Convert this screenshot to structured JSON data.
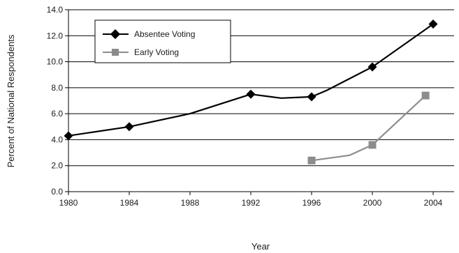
{
  "chart_data": {
    "type": "line",
    "title": "",
    "xlabel": "Year",
    "ylabel": "Percent of National Respondents",
    "xlim": [
      1980,
      2004
    ],
    "ylim": [
      0,
      14
    ],
    "x_ticks": [
      "1980",
      "1984",
      "1988",
      "1992",
      "1996",
      "2000",
      "2004"
    ],
    "y_ticks": [
      "0.0",
      "2.0",
      "4.0",
      "6.0",
      "8.0",
      "10.0",
      "12.0",
      "14.0"
    ],
    "grid": "horizontal",
    "legend_position": "top-left",
    "series": [
      {
        "name": "Absentee Voting",
        "color": "#000000",
        "marker": "diamond",
        "points": [
          {
            "x": 1980,
            "y": 4.3,
            "marker": true
          },
          {
            "x": 1984,
            "y": 5.0,
            "marker": true
          },
          {
            "x": 1988,
            "y": 6.0,
            "marker": false
          },
          {
            "x": 1992,
            "y": 7.5,
            "marker": true
          },
          {
            "x": 1994,
            "y": 7.2,
            "marker": false
          },
          {
            "x": 1996,
            "y": 7.3,
            "marker": true
          },
          {
            "x": 1997,
            "y": 7.8,
            "marker": false
          },
          {
            "x": 2000,
            "y": 9.6,
            "marker": true
          },
          {
            "x": 2004,
            "y": 12.9,
            "marker": true
          }
        ]
      },
      {
        "name": "Early Voting",
        "color": "#8c8c8c",
        "marker": "square",
        "points": [
          {
            "x": 1996,
            "y": 2.4,
            "marker": true
          },
          {
            "x": 1998.5,
            "y": 2.8,
            "marker": false
          },
          {
            "x": 2000,
            "y": 3.6,
            "marker": true
          },
          {
            "x": 2003.5,
            "y": 7.4,
            "marker": true
          }
        ]
      }
    ]
  }
}
